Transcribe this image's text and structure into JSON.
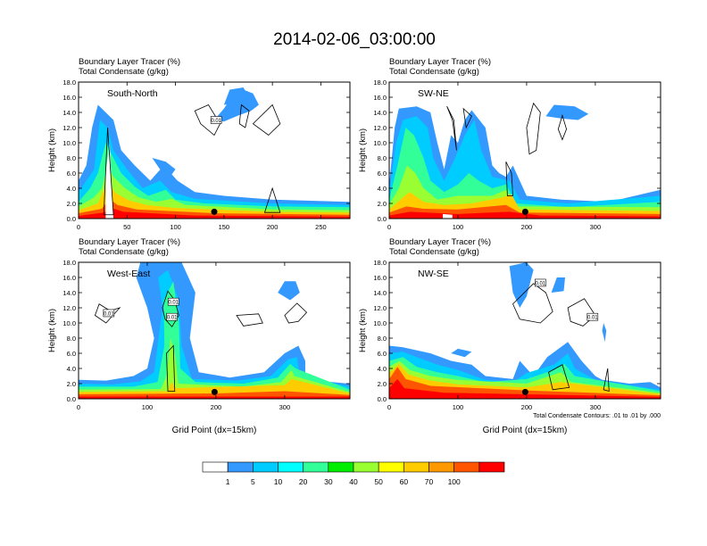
{
  "title": "2014-02-06_03:00:00",
  "chart_data": [
    {
      "type": "heatmap",
      "panel_label": "South-North",
      "title_lines": [
        "Boundary Layer Tracer   (%)",
        "Total Condensate   (g/kg)"
      ],
      "ylabel": "Height (km)",
      "xlabel": "",
      "xlim": [
        0,
        280
      ],
      "ylim": [
        0,
        18
      ],
      "x_ticks": [
        "0",
        "50",
        "100",
        "150",
        "200",
        "250"
      ],
      "x_tick_values": [
        0,
        50,
        100,
        150,
        200,
        250
      ],
      "y_ticks": [
        "0.0",
        "2.0",
        "4.0",
        "6.0",
        "8.0",
        "10.0",
        "12.0",
        "14.0",
        "16.0",
        "18.0"
      ],
      "y_tick_values": [
        0,
        2,
        4,
        6,
        8,
        10,
        12,
        14,
        16,
        18
      ],
      "marker_x": 140,
      "contour_labels": [
        {
          "text": "0.01",
          "x": 142,
          "y": 13
        }
      ],
      "footnote": ""
    },
    {
      "type": "heatmap",
      "panel_label": "SW-NE",
      "title_lines": [
        "Boundary Layer Tracer   (%)",
        "Total Condensate   (g/kg)"
      ],
      "ylabel": "Height (km)",
      "xlabel": "",
      "xlim": [
        0,
        395
      ],
      "ylim": [
        0,
        18
      ],
      "x_ticks": [
        "0",
        "100",
        "200",
        "300"
      ],
      "x_tick_values": [
        0,
        100,
        200,
        300
      ],
      "y_ticks": [
        "0.0",
        "2.0",
        "4.0",
        "6.0",
        "8.0",
        "10.0",
        "12.0",
        "14.0",
        "16.0",
        "18.0"
      ],
      "y_tick_values": [
        0,
        2,
        4,
        6,
        8,
        10,
        12,
        14,
        16,
        18
      ],
      "marker_x": 198,
      "contour_labels": [],
      "footnote": ""
    },
    {
      "type": "heatmap",
      "panel_label": "West-East",
      "title_lines": [
        "Boundary Layer Tracer   (%)",
        "Total Condensate   (g/kg)"
      ],
      "ylabel": "Height (km)",
      "xlabel": "Grid Point (dx=15km)",
      "xlim": [
        0,
        395
      ],
      "ylim": [
        0,
        18
      ],
      "x_ticks": [
        "0",
        "100",
        "200",
        "300"
      ],
      "x_tick_values": [
        0,
        100,
        200,
        300
      ],
      "y_ticks": [
        "0.0",
        "2.0",
        "4.0",
        "6.0",
        "8.0",
        "10.0",
        "12.0",
        "14.0",
        "16.0",
        "18.0"
      ],
      "y_tick_values": [
        0,
        2,
        4,
        6,
        8,
        10,
        12,
        14,
        16,
        18
      ],
      "marker_x": 198,
      "contour_labels": [
        {
          "text": "0.01",
          "x": 44,
          "y": 11.3
        },
        {
          "text": "0.01",
          "x": 138,
          "y": 12.8
        },
        {
          "text": "0.01",
          "x": 136,
          "y": 10.8
        }
      ],
      "footnote": ""
    },
    {
      "type": "heatmap",
      "panel_label": "NW-SE",
      "title_lines": [
        "Boundary Layer Tracer   (%)",
        "Total Condensate   (g/kg)"
      ],
      "ylabel": "Height (km)",
      "xlabel": "Grid Point (dx=15km)",
      "xlim": [
        0,
        395
      ],
      "ylim": [
        0,
        18
      ],
      "x_ticks": [
        "0",
        "100",
        "200",
        "300"
      ],
      "x_tick_values": [
        0,
        100,
        200,
        300
      ],
      "y_ticks": [
        "0.0",
        "2.0",
        "4.0",
        "6.0",
        "8.0",
        "10.0",
        "12.0",
        "14.0",
        "16.0",
        "18.0"
      ],
      "y_tick_values": [
        0,
        2,
        4,
        6,
        8,
        10,
        12,
        14,
        16,
        18
      ],
      "marker_x": 198,
      "contour_labels": [
        {
          "text": "0.01",
          "x": 220,
          "y": 15.3
        },
        {
          "text": "0.01",
          "x": 296,
          "y": 10.8
        }
      ],
      "footnote": "Total Condensate Contours: .01 to .01 by .000"
    }
  ],
  "colorbar": {
    "labels": [
      "1",
      "5",
      "10",
      "20",
      "30",
      "40",
      "50",
      "60",
      "70",
      "100"
    ],
    "colors": [
      "#ffffff",
      "#3399ff",
      "#00ccff",
      "#00ffff",
      "#33ff99",
      "#00ee00",
      "#99ff33",
      "#ffff00",
      "#ffcc00",
      "#ff9900",
      "#ff5500",
      "#ff0000"
    ]
  },
  "colors": {
    "c1": "#3399ff",
    "c5": "#00ccff",
    "c10": "#00ffff",
    "c20": "#33ff99",
    "c30": "#00ee00",
    "c40": "#99ff33",
    "c50": "#ffff00",
    "c60": "#ffcc00",
    "c70": "#ff9900",
    "c80": "#ff5500",
    "c100": "#ff0000"
  }
}
